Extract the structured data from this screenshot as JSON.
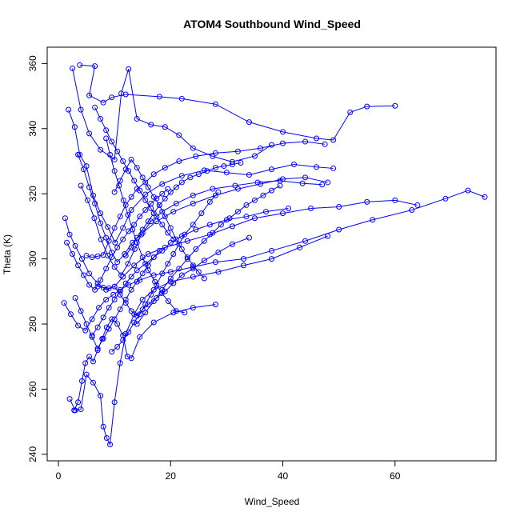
{
  "chart_data": {
    "type": "scatter",
    "title": "ATOM4 Southbound Wind_Speed",
    "xlabel": "Wind_Speed",
    "ylabel": "Theta (K)",
    "xlim": [
      -2,
      78
    ],
    "ylim": [
      238,
      365
    ],
    "x_ticks": [
      0,
      20,
      40,
      60
    ],
    "y_ticks": [
      240,
      260,
      280,
      300,
      320,
      340,
      360
    ],
    "grid": false,
    "marker": "open-circle",
    "connected": true,
    "color": "#0000ff",
    "series": [
      {
        "x": [
          3.8,
          6.5,
          5.5,
          8.0,
          9.5,
          12.0,
          18.0,
          22.0,
          28.0,
          34.0,
          40.0,
          46.0,
          49.0,
          52.0,
          55.0,
          60.0
        ],
        "y": [
          359.5,
          359.2,
          350.2,
          348.0,
          349.6,
          350.5,
          349.8,
          349.2,
          347.5,
          342.0,
          339.0,
          337.0,
          336.5,
          345.0,
          346.8,
          347.0
        ]
      },
      {
        "x": [
          2.5,
          4.0,
          5.5,
          7.5,
          10.0,
          11.2,
          12.5,
          14.0,
          16.5,
          19.0,
          21.5,
          24.0,
          27.5,
          31.0,
          35.0,
          38.0
        ],
        "y": [
          358.5,
          345.8,
          338.5,
          333.5,
          330.5,
          350.8,
          358.3,
          343.0,
          341.2,
          340.5,
          338.0,
          334.0,
          331.5,
          329.8,
          331.6,
          335.0
        ]
      },
      {
        "x": [
          1.8,
          2.9,
          3.8,
          5.0,
          6.2,
          7.5,
          8.8,
          10.1,
          11.5,
          13.0,
          15.5,
          18.5,
          22.0,
          26.0,
          30.0,
          34.0,
          38.0,
          42.0,
          46.0,
          49.0
        ],
        "y": [
          345.8,
          340.5,
          332.0,
          328.5,
          319.5,
          314.0,
          309.8,
          305.0,
          309.5,
          315.0,
          319.8,
          323.0,
          325.5,
          327.2,
          326.5,
          325.8,
          327.5,
          329.0,
          328.2,
          327.8
        ]
      },
      {
        "x": [
          1.2,
          2.0,
          3.0,
          4.2,
          5.5,
          7.0,
          8.5,
          10.0,
          11.5,
          13.5,
          16.0,
          19.0,
          23.0,
          27.0,
          31.0,
          35.0,
          40.0,
          45.0,
          50.0,
          55.0,
          60.0,
          64.0
        ],
        "y": [
          312.5,
          307.5,
          304.0,
          300.0,
          295.5,
          292.5,
          290.5,
          291.5,
          294.5,
          298.0,
          301.5,
          303.5,
          305.5,
          307.5,
          310.0,
          312.5,
          314.0,
          315.5,
          316.0,
          317.5,
          318.0,
          316.5
        ]
      },
      {
        "x": [
          1.0,
          2.2,
          3.5,
          4.8,
          6.0,
          7.2,
          8.5,
          9.8,
          11.0,
          12.5,
          14.5,
          17.0,
          20.0,
          24.0,
          28.0,
          33.0,
          38.0,
          44.0,
          50.0,
          56.0,
          63.0,
          69.0,
          73.0,
          76.0
        ],
        "y": [
          286.5,
          283.0,
          279.5,
          278.0,
          281.5,
          285.0,
          287.5,
          289.0,
          290.5,
          292.0,
          293.5,
          295.0,
          296.0,
          297.5,
          299.0,
          300.0,
          302.5,
          305.5,
          309.0,
          312.0,
          315.0,
          318.5,
          321.0,
          319.0
        ]
      },
      {
        "x": [
          2.8,
          3.5,
          4.2,
          4.8,
          5.5,
          6.2,
          7.0,
          7.8,
          8.6,
          9.5,
          10.5,
          11.5,
          12.3,
          13.0,
          14.5,
          17.0,
          20.5,
          24.0,
          28.0
        ],
        "y": [
          253.5,
          256.0,
          262.5,
          268.0,
          270.0,
          268.5,
          272.0,
          275.5,
          279.0,
          281.5,
          280.0,
          276.5,
          270.0,
          269.5,
          276.0,
          280.5,
          283.5,
          285.0,
          286.0
        ]
      },
      {
        "x": [
          2.0,
          3.0,
          4.0,
          5.0,
          6.2,
          7.5,
          8.0,
          8.6,
          9.2,
          10.0,
          11.0,
          12.0,
          13.5,
          15.0,
          17.0,
          20.0,
          24.0,
          28.5,
          33.0,
          38.0,
          43.0,
          48.0
        ],
        "y": [
          257.0,
          253.5,
          253.8,
          264.5,
          262.0,
          258.0,
          248.5,
          245.0,
          243.0,
          256.0,
          268.0,
          277.0,
          283.0,
          287.5,
          290.5,
          293.0,
          294.5,
          296.0,
          298.0,
          300.0,
          303.5,
          307.0
        ]
      },
      {
        "x": [
          3.5,
          4.5,
          5.5,
          6.5,
          7.5,
          8.5,
          9.5,
          10.5,
          11.8,
          13.2,
          15.0,
          17.5,
          20.5,
          24.0,
          28.0,
          32.0,
          36.0,
          40.0,
          44.0,
          48.0
        ],
        "y": [
          332.0,
          327.5,
          322.0,
          317.0,
          311.0,
          306.5,
          302.0,
          299.0,
          301.5,
          305.0,
          308.0,
          311.5,
          314.5,
          317.0,
          319.5,
          321.5,
          323.0,
          324.5,
          325.0,
          323.5
        ]
      },
      {
        "x": [
          4.0,
          5.2,
          6.4,
          7.6,
          8.8,
          10.0,
          11.2,
          12.4,
          13.6,
          14.8,
          16.5,
          18.5,
          21.0,
          24.0,
          27.5,
          31.5,
          35.5,
          39.5,
          43.5,
          47.0
        ],
        "y": [
          322.5,
          318.0,
          312.5,
          306.0,
          301.0,
          297.5,
          295.0,
          298.5,
          303.0,
          307.5,
          311.5,
          314.5,
          317.0,
          319.5,
          321.5,
          322.5,
          323.5,
          324.0,
          323.2,
          322.8
        ]
      },
      {
        "x": [
          5.0,
          6.0,
          7.0,
          8.0,
          9.0,
          10.0,
          11.0,
          12.0,
          13.0,
          14.0,
          15.5,
          17.0,
          19.0,
          21.5,
          24.5,
          28.0,
          32.0,
          36.0,
          40.0,
          44.0,
          47.5
        ],
        "y": [
          301.0,
          300.5,
          300.8,
          301.2,
          305.5,
          309.5,
          313.0,
          316.5,
          319.0,
          321.5,
          323.5,
          326.0,
          328.0,
          330.0,
          331.5,
          332.5,
          333.0,
          334.0,
          335.5,
          336.0,
          335.2
        ]
      },
      {
        "x": [
          6.0,
          7.0,
          8.0,
          9.0,
          10.0,
          11.0,
          12.0,
          13.0,
          14.0,
          15.5,
          17.0,
          18.5,
          20.0,
          22.0,
          24.5,
          27.0,
          30.0,
          33.5,
          37.0,
          41.0
        ],
        "y": [
          276.5,
          279.0,
          282.0,
          285.0,
          287.5,
          290.0,
          292.5,
          294.5,
          296.5,
          298.5,
          300.5,
          302.5,
          305.0,
          307.0,
          309.0,
          310.5,
          312.0,
          313.0,
          314.5,
          315.5
        ]
      },
      {
        "x": [
          7.0,
          8.0,
          9.0,
          10.0,
          11.0,
          12.0,
          13.0,
          14.0,
          15.0,
          16.0,
          17.5,
          19.0,
          20.5,
          22.0,
          24.0,
          26.0,
          28.5,
          31.0,
          34.0
        ],
        "y": [
          291.5,
          291.2,
          291.0,
          291.5,
          289.0,
          286.5,
          284.0,
          282.5,
          284.5,
          286.0,
          288.0,
          290.0,
          292.5,
          295.0,
          297.0,
          299.5,
          302.0,
          304.5,
          306.5
        ]
      },
      {
        "x": [
          8.5,
          9.2,
          10.0,
          10.8,
          11.6,
          12.4,
          13.2,
          14.0,
          15.0,
          16.0,
          17.2,
          18.4,
          19.6,
          21.0,
          22.5
        ],
        "y": [
          337.0,
          332.0,
          327.0,
          322.5,
          318.0,
          313.5,
          309.0,
          305.0,
          300.5,
          296.5,
          293.0,
          289.5,
          287.0,
          284.0,
          283.5
        ]
      },
      {
        "x": [
          9.5,
          10.5,
          11.5,
          12.5,
          13.5,
          14.5,
          15.5,
          16.5,
          17.5,
          18.5,
          19.5,
          20.5,
          21.5,
          22.5,
          24.0,
          25.5,
          27.0,
          28.5
        ],
        "y": [
          271.5,
          273.0,
          275.0,
          277.5,
          280.5,
          283.0,
          286.0,
          289.0,
          292.0,
          295.5,
          298.5,
          301.5,
          304.5,
          307.5,
          310.5,
          314.0,
          317.5,
          320.5
        ]
      },
      {
        "x": [
          1.5,
          2.5,
          3.5,
          4.5,
          5.5,
          6.5,
          7.5,
          8.5,
          9.5,
          10.5,
          11.5,
          12.5,
          13.5,
          14.5,
          15.5,
          16.5,
          17.5,
          18.5,
          19.5
        ],
        "y": [
          305.0,
          301.5,
          298.0,
          295.0,
          292.0,
          290.5,
          293.5,
          297.0,
          300.5,
          303.5,
          306.0,
          308.5,
          310.5,
          313.0,
          315.0,
          317.0,
          318.5,
          320.0,
          321.5
        ]
      },
      {
        "x": [
          10.0,
          11.0,
          12.0,
          13.0,
          14.0,
          15.0,
          16.0,
          17.0,
          18.0,
          19.0,
          20.0,
          21.0,
          22.0,
          23.0,
          24.0,
          25.0,
          26.0
        ],
        "y": [
          320.5,
          324.0,
          327.5,
          330.5,
          328.0,
          325.0,
          322.0,
          319.0,
          316.5,
          313.0,
          309.5,
          306.0,
          303.0,
          300.5,
          298.0,
          296.0,
          294.0
        ]
      },
      {
        "x": [
          12.0,
          13.0,
          14.0,
          15.0,
          16.0,
          17.0,
          18.0,
          19.0,
          20.0,
          21.0,
          22.0,
          23.5,
          25.0,
          26.5,
          28.0,
          29.5,
          31.0,
          32.5
        ],
        "y": [
          301.0,
          303.5,
          306.5,
          309.0,
          311.5,
          314.0,
          316.5,
          318.5,
          320.5,
          322.0,
          323.5,
          325.0,
          326.0,
          327.0,
          328.0,
          328.5,
          329.0,
          329.5
        ]
      },
      {
        "x": [
          3.0,
          4.0,
          5.0,
          6.0,
          7.0,
          8.0,
          9.0,
          10.0,
          11.0,
          12.0,
          13.0,
          14.0,
          15.0,
          16.0,
          17.0,
          18.0
        ],
        "y": [
          288.0,
          284.0,
          280.0,
          276.0,
          272.5,
          275.5,
          278.5,
          281.5,
          284.5,
          287.5,
          290.5,
          293.0,
          295.5,
          298.0,
          300.5,
          302.5
        ]
      },
      {
        "x": [
          14.0,
          15.5,
          17.0,
          18.5,
          20.0,
          21.5,
          23.0,
          24.5,
          26.0,
          27.5,
          29.0,
          30.5,
          32.0,
          33.5,
          35.0,
          36.5,
          38.0,
          39.5
        ],
        "y": [
          280.0,
          283.5,
          287.0,
          290.5,
          294.0,
          297.0,
          300.0,
          303.0,
          305.5,
          308.0,
          310.5,
          312.5,
          314.5,
          316.5,
          318.0,
          319.5,
          321.0,
          322.5
        ]
      },
      {
        "x": [
          6.5,
          7.5,
          8.5,
          9.5,
          10.5,
          11.5,
          12.5,
          13.5,
          14.5,
          15.5,
          16.5,
          17.5,
          18.5,
          19.5,
          20.5
        ],
        "y": [
          346.5,
          343.0,
          339.5,
          336.0,
          333.0,
          330.0,
          327.0,
          324.0,
          321.0,
          318.0,
          315.5,
          313.0,
          310.5,
          308.0,
          306.0
        ]
      }
    ]
  }
}
